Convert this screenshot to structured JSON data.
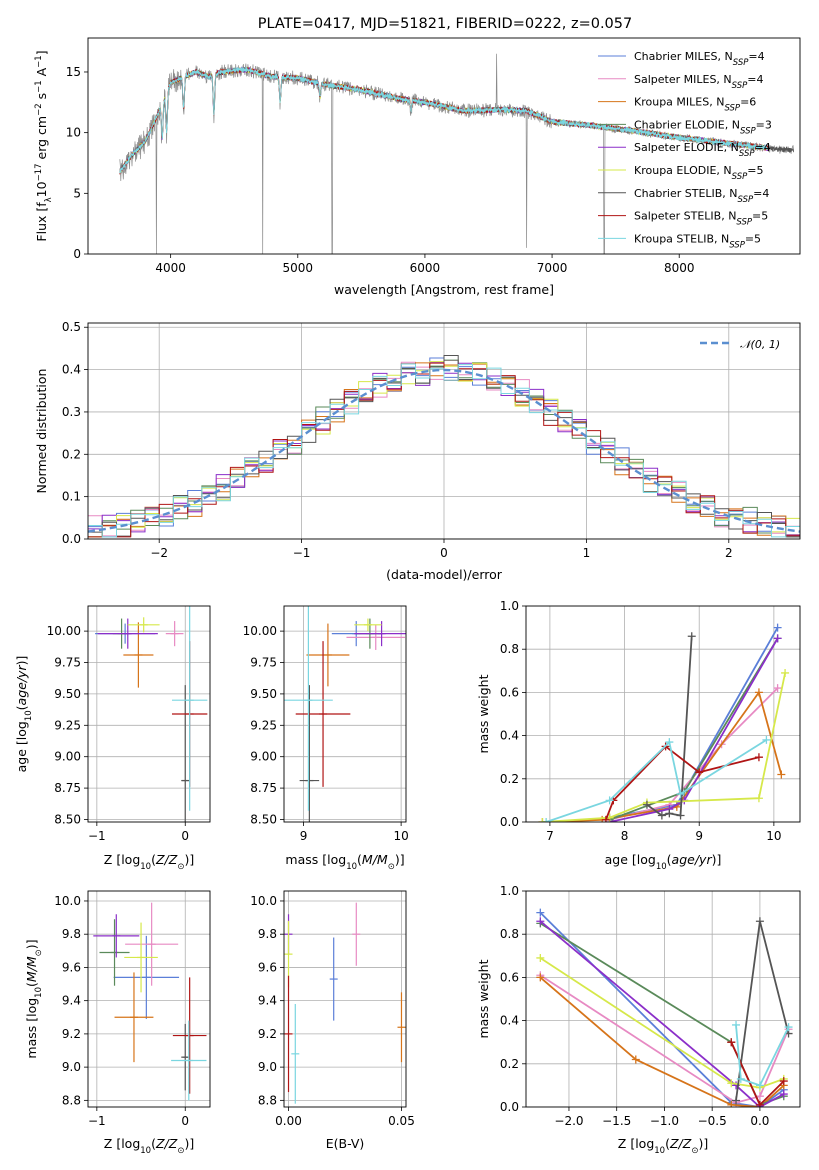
{
  "title": "PLATE=0417, MJD=51821, FIBERID=0222, z=0.057",
  "palette": {
    "blue": "#5b7fd8",
    "pink": "#e78ac3",
    "orange": "#d6741a",
    "green": "#5a8a5a",
    "purple": "#8b2fc9",
    "yellow": "#d6e84a",
    "gray": "#555555",
    "red": "#b01515",
    "cyan": "#7ad6e0",
    "obs": "#8a8a8a"
  },
  "chart_data": [
    {
      "id": "spectrum",
      "type": "line",
      "xlabel": "wavelength [Angstrom, rest frame]",
      "ylabel": "Flux [f$_\\lambda$10$^{-17}$ erg cm$^{-2}$ s$^{-1}$ A$^{-1}$]",
      "ylabel_parts": [
        "Flux [f",
        "λ",
        "10",
        "−17",
        " erg cm",
        "−2",
        " s",
        "−1",
        " A",
        "−1",
        "]"
      ],
      "xlim": [
        3350,
        8950
      ],
      "ylim": [
        0,
        17.8
      ],
      "xticks": [
        4000,
        5000,
        6000,
        7000,
        8000
      ],
      "yticks": [
        0,
        5,
        10,
        15
      ],
      "legend_position": "upper right",
      "continuum_x": [
        3600,
        3700,
        3800,
        3900,
        4000,
        4100,
        4200,
        4300,
        4400,
        4600,
        4800,
        5000,
        5200,
        5500,
        5800,
        6000,
        6300,
        6600,
        6800,
        7000,
        7300,
        7600,
        8000,
        8400,
        8800
      ],
      "continuum_y": [
        6.8,
        8.2,
        9.3,
        11.5,
        14.1,
        14.6,
        15.0,
        14.6,
        15.0,
        15.2,
        14.6,
        14.5,
        14.0,
        13.5,
        12.8,
        12.5,
        11.8,
        11.9,
        11.8,
        10.9,
        10.6,
        10.2,
        9.6,
        9.1,
        8.6
      ],
      "absorption_lines": [
        [
          3934,
          9.0
        ],
        [
          3968,
          9.5
        ],
        [
          4102,
          11.5
        ],
        [
          4340,
          11.0
        ],
        [
          4861,
          12.2
        ],
        [
          5175,
          12.8
        ],
        [
          5890,
          11.8
        ]
      ],
      "spikes": [
        [
          3889,
          0.0
        ],
        [
          4725,
          0.0
        ],
        [
          5270,
          0.0
        ],
        [
          6563,
          16.5
        ],
        [
          6800,
          0.5
        ],
        [
          7410,
          0.0
        ]
      ],
      "series": [
        {
          "name": "Chabrier MILES",
          "nssp": "4",
          "color_key": "blue"
        },
        {
          "name": "Salpeter MILES",
          "nssp": "4",
          "color_key": "pink"
        },
        {
          "name": "Kroupa MILES",
          "nssp": "6",
          "color_key": "orange"
        },
        {
          "name": "Chabrier ELODIE",
          "nssp": "3",
          "color_key": "green"
        },
        {
          "name": "Salpeter ELODIE",
          "nssp": "4",
          "color_key": "purple"
        },
        {
          "name": "Kroupa ELODIE",
          "nssp": "5",
          "color_key": "yellow"
        },
        {
          "name": "Chabrier STELIB",
          "nssp": "4",
          "color_key": "gray"
        },
        {
          "name": "Salpeter STELIB",
          "nssp": "5",
          "color_key": "red"
        },
        {
          "name": "Kroupa STELIB",
          "nssp": "5",
          "color_key": "cyan"
        }
      ],
      "legend_prefix": "N",
      "legend_sub": "SSP"
    },
    {
      "id": "residuals",
      "type": "histogram",
      "xlabel": "(data-model)/error",
      "ylabel": "Normed distribution",
      "xlim": [
        -2.5,
        2.5
      ],
      "ylim": [
        0,
        0.51
      ],
      "xticks": [
        -2,
        -1,
        0,
        1,
        2
      ],
      "yticks": [
        0.0,
        0.1,
        0.2,
        0.3,
        0.4,
        0.5
      ],
      "grid": true,
      "reference_label": "𝒩(0, 1)",
      "reference_color": "#5b8fd0",
      "bin_width": 0.1,
      "jitter": [
        0.012,
        -0.025,
        0.03,
        -0.01,
        0.02,
        -0.03,
        0.008,
        0.035,
        -0.018,
        0.015,
        -0.022,
        0.027,
        -0.005,
        0.018,
        -0.028,
        0.01,
        0.024,
        -0.014,
        0.032,
        -0.02,
        0.006,
        -0.033,
        0.021,
        -0.009,
        0.029,
        -0.017,
        0.013,
        -0.026,
        0.004,
        0.031
      ]
    },
    {
      "id": "age_vs_Z",
      "type": "errorbar",
      "xlabel": "Z [log$_{10}$(Z/Z$_\\odot$)]",
      "ylabel": "age  [log$_{10}$(age/yr)]",
      "xlim": [
        -1.1,
        0.28
      ],
      "ylim": [
        8.48,
        10.2
      ],
      "xticks": [
        -1,
        0
      ],
      "yticks": [
        8.5,
        8.75,
        9.0,
        9.25,
        9.5,
        9.75,
        10.0
      ],
      "points": [
        {
          "color_key": "blue",
          "x": -0.68,
          "xerr": 0.34,
          "y": 9.98,
          "yerr": 0.08
        },
        {
          "color_key": "pink",
          "x": -0.12,
          "xerr": 0.1,
          "y": 9.98,
          "yerr": 0.1
        },
        {
          "color_key": "orange",
          "x": -0.53,
          "xerr": 0.17,
          "y": 9.81,
          "yerr": 0.26
        },
        {
          "color_key": "green",
          "x": -0.72,
          "xerr": 0.1,
          "y": 9.98,
          "yerr": 0.12
        },
        {
          "color_key": "purple",
          "x": -0.65,
          "xerr": 0.34,
          "y": 9.98,
          "yerr": 0.12
        },
        {
          "color_key": "yellow",
          "x": -0.47,
          "xerr": 0.18,
          "y": 10.05,
          "yerr": 0.06
        },
        {
          "color_key": "gray",
          "x": 0.0,
          "xerr": 0.04,
          "y": 8.81,
          "yerr": 0.76
        },
        {
          "color_key": "red",
          "x": 0.05,
          "xerr": 0.2,
          "y": 9.34,
          "yerr": 0.58
        },
        {
          "color_key": "cyan",
          "x": 0.05,
          "xerr": 0.2,
          "y": 9.45,
          "yerr": 0.88
        }
      ]
    },
    {
      "id": "age_vs_mass",
      "type": "errorbar",
      "xlabel": "mass [log$_{10}$(M/M$_\\odot$)]",
      "ylabel": "",
      "xlim": [
        8.8,
        10.05
      ],
      "ylim": [
        8.48,
        10.2
      ],
      "xticks": [
        9,
        10
      ],
      "yticks": [
        8.5,
        8.75,
        9.0,
        9.25,
        9.5,
        9.75,
        10.0
      ],
      "points": [
        {
          "color_key": "blue",
          "x": 9.54,
          "xerr": 0.25,
          "y": 9.98,
          "yerr": 0.1
        },
        {
          "color_key": "pink",
          "x": 9.74,
          "xerr": 0.3,
          "y": 9.95,
          "yerr": 0.1
        },
        {
          "color_key": "orange",
          "x": 9.25,
          "xerr": 0.22,
          "y": 9.81,
          "yerr": 0.25
        },
        {
          "color_key": "green",
          "x": 9.68,
          "xerr": 0.14,
          "y": 9.98,
          "yerr": 0.12
        },
        {
          "color_key": "purple",
          "x": 9.8,
          "xerr": 0.28,
          "y": 9.98,
          "yerr": 0.1
        },
        {
          "color_key": "yellow",
          "x": 9.66,
          "xerr": 0.14,
          "y": 10.05,
          "yerr": 0.05
        },
        {
          "color_key": "gray",
          "x": 9.06,
          "xerr": 0.1,
          "y": 8.81,
          "yerr": 0.76
        },
        {
          "color_key": "red",
          "x": 9.2,
          "xerr": 0.28,
          "y": 9.34,
          "yerr": 0.58
        },
        {
          "color_key": "cyan",
          "x": 9.05,
          "xerr": 0.25,
          "y": 9.45,
          "yerr": 0.88
        }
      ]
    },
    {
      "id": "weight_vs_age",
      "type": "line",
      "xlabel": "age  [log$_{10}$(age/yr)]",
      "ylabel": "mass weight",
      "xlim": [
        6.68,
        10.35
      ],
      "ylim": [
        0,
        1.0
      ],
      "xticks": [
        7,
        8,
        9,
        10
      ],
      "yticks": [
        0.0,
        0.2,
        0.4,
        0.6,
        0.8,
        1.0
      ],
      "series": [
        {
          "color_key": "blue",
          "x": [
            7.8,
            8.7,
            10.05
          ],
          "y": [
            0.02,
            0.08,
            0.9
          ]
        },
        {
          "color_key": "pink",
          "x": [
            7.8,
            8.6,
            9.3,
            10.05
          ],
          "y": [
            0.01,
            0.08,
            0.36,
            0.62
          ]
        },
        {
          "color_key": "orange",
          "x": [
            6.9,
            7.7,
            8.7,
            9.8,
            10.1
          ],
          "y": [
            0.0,
            0.01,
            0.07,
            0.6,
            0.22
          ]
        },
        {
          "color_key": "green",
          "x": [
            7.8,
            8.8,
            10.05
          ],
          "y": [
            0.01,
            0.14,
            0.85
          ]
        },
        {
          "color_key": "purple",
          "x": [
            7.8,
            8.6,
            8.8,
            10.05
          ],
          "y": [
            0.0,
            0.06,
            0.1,
            0.85
          ]
        },
        {
          "color_key": "yellow",
          "x": [
            6.9,
            7.8,
            8.3,
            9.8,
            10.15
          ],
          "y": [
            0.0,
            0.02,
            0.09,
            0.11,
            0.69
          ]
        },
        {
          "color_key": "gray",
          "x": [
            8.3,
            8.5,
            8.6,
            8.75,
            8.9
          ],
          "y": [
            0.08,
            0.03,
            0.04,
            0.03,
            0.86
          ]
        },
        {
          "color_key": "red",
          "x": [
            7.75,
            7.85,
            8.55,
            9.0,
            9.8
          ],
          "y": [
            0.01,
            0.1,
            0.35,
            0.23,
            0.3
          ]
        },
        {
          "color_key": "cyan",
          "x": [
            6.95,
            7.8,
            8.6,
            8.75,
            9.9
          ],
          "y": [
            0.0,
            0.1,
            0.37,
            0.13,
            0.38
          ]
        }
      ]
    },
    {
      "id": "mass_vs_Z",
      "type": "errorbar",
      "xlabel": "Z [log$_{10}$(Z/Z$_\\odot$)]",
      "ylabel": "mass [log$_{10}$(M/M$_\\odot$)]",
      "xlim": [
        -1.1,
        0.28
      ],
      "ylim": [
        8.76,
        10.06
      ],
      "xticks": [
        -1,
        0
      ],
      "yticks": [
        8.8,
        9.0,
        9.2,
        9.4,
        9.6,
        9.8,
        10.0
      ],
      "points": [
        {
          "color_key": "blue",
          "x": -0.44,
          "xerr": 0.37,
          "y": 9.54,
          "yerr": 0.25
        },
        {
          "color_key": "pink",
          "x": -0.38,
          "xerr": 0.3,
          "y": 9.74,
          "yerr": 0.25
        },
        {
          "color_key": "orange",
          "x": -0.58,
          "xerr": 0.22,
          "y": 9.3,
          "yerr": 0.27
        },
        {
          "color_key": "green",
          "x": -0.8,
          "xerr": 0.17,
          "y": 9.69,
          "yerr": 0.2
        },
        {
          "color_key": "purple",
          "x": -0.78,
          "xerr": 0.26,
          "y": 9.79,
          "yerr": 0.13
        },
        {
          "color_key": "yellow",
          "x": -0.5,
          "xerr": 0.19,
          "y": 9.66,
          "yerr": 0.21
        },
        {
          "color_key": "gray",
          "x": 0.0,
          "xerr": 0.03,
          "y": 9.06,
          "yerr": 0.2
        },
        {
          "color_key": "red",
          "x": 0.05,
          "xerr": 0.19,
          "y": 9.19,
          "yerr": 0.35
        },
        {
          "color_key": "cyan",
          "x": 0.04,
          "xerr": 0.2,
          "y": 9.04,
          "yerr": 0.24
        }
      ]
    },
    {
      "id": "mass_vs_EBV",
      "type": "errorbar",
      "xlabel": "E(B-V)",
      "ylabel": "",
      "xlim": [
        -0.002,
        0.052
      ],
      "ylim": [
        8.76,
        10.06
      ],
      "xticks": [
        0.0,
        0.05
      ],
      "yticks": [
        8.8,
        9.0,
        9.2,
        9.4,
        9.6,
        9.8,
        10.0
      ],
      "points": [
        {
          "color_key": "blue",
          "x": 0.02,
          "y": 9.53,
          "yerr": 0.25
        },
        {
          "color_key": "pink",
          "x": 0.03,
          "y": 9.8,
          "yerr": 0.19
        },
        {
          "color_key": "orange",
          "x": 0.05,
          "y": 9.24,
          "yerr": 0.21
        },
        {
          "color_key": "purple",
          "x": 0.0,
          "y": 9.8,
          "yerr": 0.12
        },
        {
          "color_key": "yellow",
          "x": 0.0,
          "y": 9.68,
          "yerr": 0.2
        },
        {
          "color_key": "red",
          "x": 0.0,
          "y": 9.2,
          "yerr": 0.35
        },
        {
          "color_key": "cyan",
          "x": 0.003,
          "y": 9.08,
          "yerr": 0.3
        }
      ]
    },
    {
      "id": "weight_vs_Z",
      "type": "line",
      "xlabel": "Z [log$_{10}$(Z/Z$_\\odot$)]",
      "ylabel": "mass weight",
      "xlim": [
        -2.45,
        0.42
      ],
      "ylim": [
        0,
        1.0
      ],
      "xticks": [
        -2.0,
        -1.5,
        -1.0,
        -0.5,
        0.0
      ],
      "yticks": [
        0.0,
        0.2,
        0.4,
        0.6,
        0.8,
        1.0
      ],
      "series": [
        {
          "color_key": "blue",
          "x": [
            -2.3,
            -0.3,
            0.0,
            0.25
          ],
          "y": [
            0.9,
            0.02,
            0.0,
            0.08
          ]
        },
        {
          "color_key": "pink",
          "x": [
            -2.3,
            -0.25,
            0.0,
            0.3
          ],
          "y": [
            0.61,
            0.02,
            0.05,
            0.36
          ]
        },
        {
          "color_key": "orange",
          "x": [
            -2.3,
            -1.3,
            -0.3,
            0.0,
            0.25
          ],
          "y": [
            0.6,
            0.22,
            0.01,
            0.0,
            0.1
          ]
        },
        {
          "color_key": "green",
          "x": [
            -2.3,
            -0.3,
            0.0,
            0.25
          ],
          "y": [
            0.85,
            0.3,
            0.01,
            0.05
          ]
        },
        {
          "color_key": "purple",
          "x": [
            -2.3,
            -0.25,
            0.0,
            0.25
          ],
          "y": [
            0.86,
            0.1,
            0.0,
            0.06
          ]
        },
        {
          "color_key": "yellow",
          "x": [
            -2.3,
            -0.3,
            0.0,
            0.25
          ],
          "y": [
            0.69,
            0.11,
            0.09,
            0.13
          ]
        },
        {
          "color_key": "gray",
          "x": [
            -0.25,
            0.0,
            0.3
          ],
          "y": [
            0.03,
            0.86,
            0.34
          ]
        },
        {
          "color_key": "red",
          "x": [
            -0.3,
            0.0,
            0.25
          ],
          "y": [
            0.3,
            0.01,
            0.12
          ]
        },
        {
          "color_key": "cyan",
          "x": [
            -0.25,
            -0.2,
            0.0,
            0.3
          ],
          "y": [
            0.38,
            0.13,
            0.1,
            0.37
          ]
        }
      ]
    }
  ]
}
